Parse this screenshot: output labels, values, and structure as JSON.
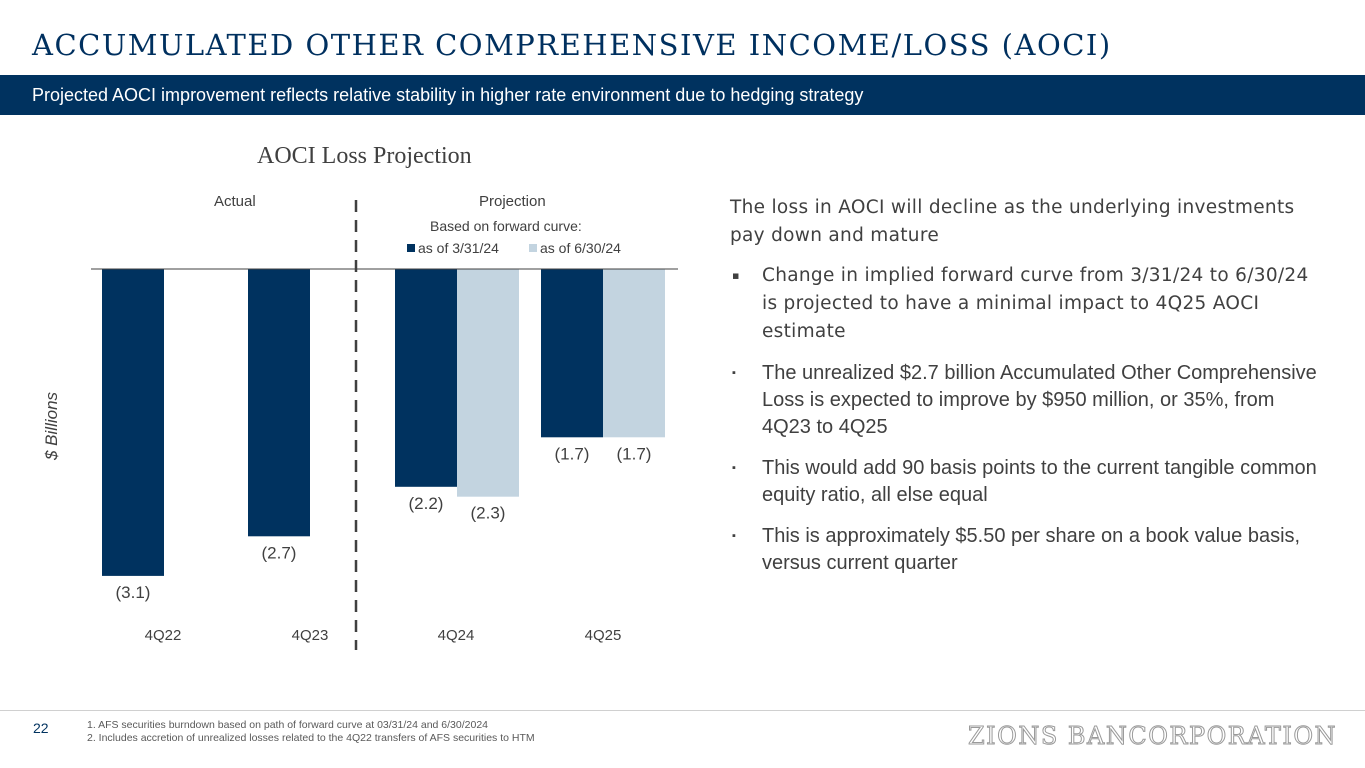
{
  "slide": {
    "title": "ACCUMULATED OTHER COMPREHENSIVE INCOME/LOSS (AOCI)",
    "subtitle": "Projected AOCI improvement reflects relative stability in higher rate environment due to hedging strategy",
    "page_number": "22",
    "logo": "ZIONS BANCORPORATION",
    "footnotes": [
      "1.   AFS securities burndown based on path of forward curve at 03/31/24 and 6/30/2024",
      "2.   Includes accretion of unrealized losses related to the 4Q22 transfers of AFS securities to HTM"
    ]
  },
  "chart_data": {
    "type": "bar",
    "title": "AOCI Loss Projection",
    "ylabel": "$ Billions",
    "xlabel": "",
    "section_labels": {
      "actual": "Actual",
      "projection": "Projection"
    },
    "legend_title": "Based on forward curve:",
    "categories": [
      "4Q22",
      "4Q23",
      "4Q24",
      "4Q25"
    ],
    "series": [
      {
        "name": "as of 3/31/24",
        "color": "#00325f",
        "values": [
          -3.1,
          -2.7,
          -2.2,
          -1.7
        ],
        "labels": [
          "(3.1)",
          "(2.7)",
          "(2.2)",
          "(1.7)"
        ]
      },
      {
        "name": "as of 6/30/24",
        "color": "#c3d4e0",
        "values": [
          null,
          null,
          -2.3,
          -1.7
        ],
        "labels": [
          null,
          null,
          "(2.3)",
          "(1.7)"
        ]
      }
    ],
    "ylim": [
      -3.1,
      0
    ],
    "grid": false,
    "legend_position": "top-right"
  },
  "panel": {
    "lead": "The loss in AOCI will decline as the underlying investments pay down and mature",
    "bullets": [
      "Change in implied forward curve from 3/31/24 to 6/30/24 is projected to have a minimal impact to 4Q25 AOCI estimate",
      "The unrealized $2.7 billion Accumulated Other Comprehensive Loss is expected to improve by $950 million, or 35%, from 4Q23 to 4Q25",
      "This would add 90 basis points to the current tangible common equity ratio, all else equal",
      "This is approximately $5.50 per share on a book value basis, versus current quarter"
    ],
    "bullet_marker": "▪"
  }
}
